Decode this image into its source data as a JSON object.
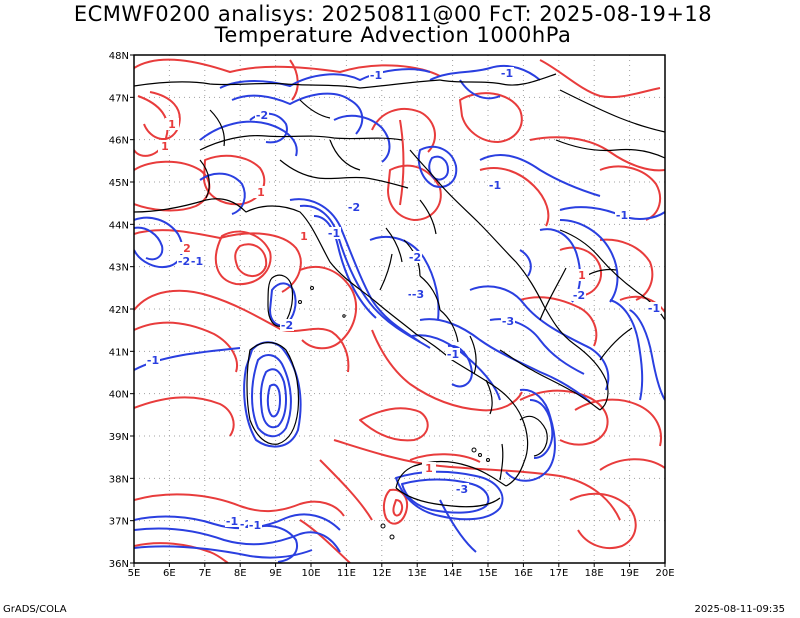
{
  "titles": {
    "line1": "ECMWF0200 analisys: 20250811@00 FcT: 2025-08-19+18",
    "line2": "Temperature Advection 1000hPa"
  },
  "footer": {
    "left": "GrADS/COLA",
    "right": "2025-08-11-09:35"
  },
  "map": {
    "lon_labels": [
      "5E",
      "6E",
      "7E",
      "8E",
      "9E",
      "10E",
      "11E",
      "12E",
      "13E",
      "14E",
      "15E",
      "16E",
      "17E",
      "18E",
      "19E",
      "20E"
    ],
    "lat_labels": [
      "48N",
      "47N",
      "46N",
      "45N",
      "44N",
      "43N",
      "42N",
      "41N",
      "40N",
      "39N",
      "38N",
      "37N",
      "36N"
    ],
    "lon_range": [
      5,
      20
    ],
    "lat_range": [
      36,
      48
    ],
    "grid": "dotted",
    "colors": {
      "warm_advection": "#e83c3c",
      "cold_advection": "#2a3fe0",
      "coastline": "#000000",
      "grid": "#a0a0a0"
    },
    "contour_labels": [
      {
        "text": "-1",
        "color": "blue"
      },
      {
        "text": "-1",
        "color": "blue"
      },
      {
        "text": "-2",
        "color": "blue"
      },
      {
        "text": "1",
        "color": "red"
      },
      {
        "text": "1",
        "color": "red"
      },
      {
        "text": "-1",
        "color": "blue"
      },
      {
        "text": "-2",
        "color": "blue"
      },
      {
        "text": "-1",
        "color": "blue"
      },
      {
        "text": "2",
        "color": "red"
      },
      {
        "text": "-2",
        "color": "blue"
      },
      {
        "text": "-1",
        "color": "blue"
      },
      {
        "text": "-1",
        "color": "blue"
      },
      {
        "text": "-2",
        "color": "blue"
      },
      {
        "text": "-2",
        "color": "blue"
      },
      {
        "text": "-1",
        "color": "blue"
      },
      {
        "text": "-3",
        "color": "blue"
      },
      {
        "text": "-1",
        "color": "blue"
      },
      {
        "text": "-3",
        "color": "blue"
      },
      {
        "text": "-2",
        "color": "blue"
      },
      {
        "text": "-1",
        "color": "blue"
      },
      {
        "text": "1",
        "color": "red"
      },
      {
        "text": "1",
        "color": "red"
      },
      {
        "text": "1",
        "color": "red"
      },
      {
        "text": "-1",
        "color": "blue"
      },
      {
        "text": "-2",
        "color": "blue"
      },
      {
        "text": "-1",
        "color": "blue"
      },
      {
        "text": "-3",
        "color": "blue"
      },
      {
        "text": "-1",
        "color": "blue"
      },
      {
        "text": "1",
        "color": "red"
      }
    ]
  }
}
